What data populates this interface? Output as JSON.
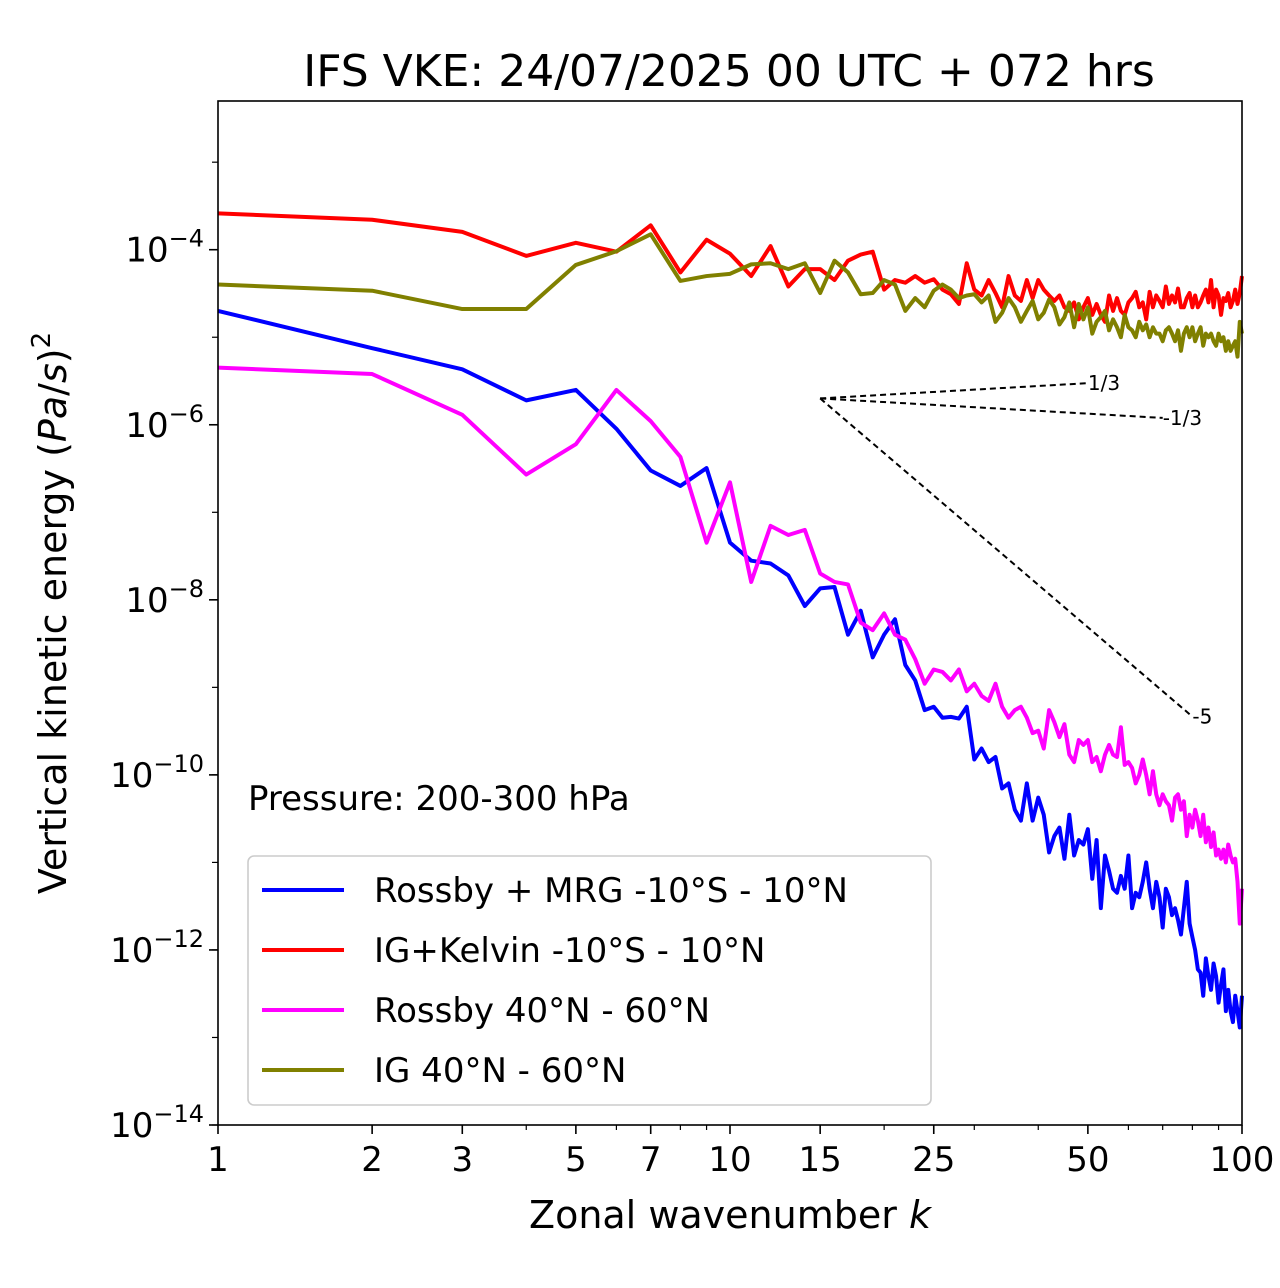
{
  "chart_data": {
    "type": "line",
    "title": "IFS VKE: 24/07/2025 00 UTC + 072 hrs",
    "xlabel": "Zonal wavenumber k",
    "ylabel": "Vertical kinetic energy (Pa/s)2",
    "xscale": "log",
    "yscale": "log",
    "xlim": [
      1,
      100
    ],
    "ylim": [
      1e-14,
      0.005
    ],
    "xticks": [
      1,
      2,
      3,
      5,
      7,
      10,
      15,
      25,
      50,
      100
    ],
    "xtick_labels": [
      "1",
      "2",
      "3",
      "5",
      "7",
      "10",
      "15",
      "25",
      "50",
      "100"
    ],
    "yticks": [
      1e-14,
      1e-12,
      1e-10,
      1e-08,
      1e-06,
      0.0001
    ],
    "ytick_labels": [
      "10−14",
      "10−12",
      "10−10",
      "10−8",
      "10−6",
      "10−4"
    ],
    "grid": false,
    "legend_position": "lower-left",
    "annotation": "Pressure: 200-300 hPa",
    "reference_slopes": [
      {
        "label": "1/3",
        "slope": 0.3333,
        "x_start": 15,
        "x_end": 50,
        "y_start": 2e-06
      },
      {
        "label": "-1/3",
        "slope": -0.3333,
        "x_start": 15,
        "x_end": 70,
        "y_start": 2e-06
      },
      {
        "label": "-5",
        "slope": -5,
        "x_start": 15,
        "x_end": 80,
        "y_start": 2e-06
      }
    ],
    "series": [
      {
        "name": "Rossby + MRG -10°S - 10°N",
        "color": "#0000ff",
        "x": [
          1,
          2,
          3,
          4,
          5,
          6,
          7,
          8,
          9,
          10,
          11,
          12,
          13,
          14,
          15,
          16,
          17,
          18,
          19,
          20,
          21,
          22,
          23,
          24,
          25,
          26,
          27,
          28,
          29,
          30,
          31,
          32,
          33,
          34,
          35,
          36,
          37,
          38,
          39,
          40,
          41,
          42,
          43,
          44,
          45,
          46,
          47,
          48,
          49,
          50,
          51,
          52,
          53,
          54,
          55,
          56,
          57,
          58,
          59,
          60,
          61,
          62,
          63,
          64,
          65,
          66,
          67,
          68,
          69,
          70,
          71,
          72,
          73,
          74,
          75,
          76,
          77,
          78,
          79,
          80,
          81,
          82,
          83,
          84,
          85,
          86,
          87,
          88,
          89,
          90,
          91,
          92,
          93,
          94,
          95,
          96,
          97,
          98,
          99,
          100
        ],
        "y": [
          2e-05,
          7.5e-06,
          4.3e-06,
          1.9e-06,
          2.5e-06,
          9e-07,
          3e-07,
          2e-07,
          3.2e-07,
          4.5e-08,
          2.8e-08,
          2.6e-08,
          1.9e-08,
          8.5e-09,
          1.35e-08,
          1.4e-08,
          4e-09,
          7.5e-09,
          2.2e-09,
          4e-09,
          6e-09,
          1.8e-09,
          1.2e-09,
          5.5e-10,
          6e-10,
          4.5e-10,
          4.6e-10,
          4.4e-10,
          6e-10,
          1.5e-10,
          2e-10,
          1.4e-10,
          1.6e-10,
          7e-11,
          8e-11,
          4e-11,
          3e-11,
          8e-11,
          3e-11,
          5.5e-11,
          3.5e-11,
          1.3e-11,
          2e-11,
          2.5e-11,
          1.1e-11,
          3.5e-11,
          1.2e-11,
          1.8e-11,
          1.6e-11,
          2.4e-11,
          6.5e-12,
          1.8e-11,
          3e-12,
          1.2e-11,
          8e-12,
          5e-12,
          4.5e-12,
          7e-12,
          5e-12,
          1.2e-11,
          3e-12,
          4.5e-12,
          4e-12,
          6e-12,
          1e-11,
          5e-12,
          3e-12,
          6e-12,
          4e-12,
          1.8e-12,
          5e-12,
          4e-12,
          2.5e-12,
          3e-12,
          2.2e-12,
          1.5e-12,
          3e-12,
          6e-12,
          2e-12,
          1.4e-12,
          1e-12,
          6e-13,
          5.5e-13,
          3e-13,
          8e-13,
          5e-13,
          3.5e-13,
          7e-13,
          5e-13,
          2.5e-13,
          4e-13,
          6e-13,
          2e-13,
          3.5e-13,
          2e-13,
          1.5e-13,
          3e-13,
          2e-13,
          1.3e-13,
          3e-13
        ]
      },
      {
        "name": "IG+Kelvin -10°S - 10°N",
        "color": "#ff0000",
        "x": [
          1,
          2,
          3,
          4,
          5,
          6,
          7,
          8,
          9,
          10,
          11,
          12,
          13,
          14,
          15,
          16,
          17,
          18,
          19,
          20,
          21,
          22,
          23,
          24,
          25,
          26,
          27,
          28,
          29,
          30,
          31,
          32,
          33,
          34,
          35,
          36,
          37,
          38,
          39,
          40,
          41,
          42,
          43,
          44,
          45,
          46,
          47,
          48,
          49,
          50,
          51,
          52,
          53,
          54,
          55,
          56,
          57,
          58,
          59,
          60,
          61,
          62,
          63,
          64,
          65,
          66,
          67,
          68,
          69,
          70,
          71,
          72,
          73,
          74,
          75,
          76,
          77,
          78,
          79,
          80,
          81,
          82,
          83,
          84,
          85,
          86,
          87,
          88,
          89,
          90,
          91,
          92,
          93,
          94,
          95,
          96,
          97,
          98,
          99,
          100
        ],
        "y": [
          0.00026,
          0.00022,
          0.00016,
          8.5e-05,
          0.00012,
          9.5e-05,
          0.00019,
          5.5e-05,
          0.00013,
          9e-05,
          5e-05,
          0.00011,
          3.8e-05,
          6e-05,
          6e-05,
          4.5e-05,
          7.5e-05,
          8.8e-05,
          9.5e-05,
          3.5e-05,
          4.5e-05,
          4.2e-05,
          5e-05,
          4.2e-05,
          4.6e-05,
          3.5e-05,
          3.1e-05,
          2.4e-05,
          7e-05,
          3.5e-05,
          3e-05,
          4.5e-05,
          3.2e-05,
          2.2e-05,
          5e-05,
          3e-05,
          2.6e-05,
          4.5e-05,
          2.8e-05,
          4.5e-05,
          3.5e-05,
          3e-05,
          2.6e-05,
          3e-05,
          2.2e-05,
          2e-05,
          2.5e-05,
          1.6e-05,
          2.2e-05,
          2.8e-05,
          1.8e-05,
          2.4e-05,
          1.8e-05,
          1.5e-05,
          3e-05,
          2e-05,
          2.8e-05,
          2e-05,
          1.8e-05,
          2.5e-05,
          2.8e-05,
          3.3e-05,
          2.2e-05,
          2.5e-05,
          1.6e-05,
          3.3e-05,
          2.2e-05,
          3e-05,
          2.6e-05,
          2.2e-05,
          3.8e-05,
          2.4e-05,
          3e-05,
          2.5e-05,
          3.6e-05,
          2.2e-05,
          2.2e-05,
          2.8e-05,
          3.2e-05,
          2.2e-05,
          3e-05,
          2.2e-05,
          2.5e-05,
          3e-05,
          3.5e-05,
          2.5e-05,
          4.5e-05,
          2.2e-05,
          3.5e-05,
          3e-05,
          1.8e-05,
          2.8e-05,
          2.6e-05,
          3.2e-05,
          2.2e-05,
          2.6e-05,
          3.5e-05,
          2.4e-05,
          3.2e-05,
          5e-05
        ]
      },
      {
        "name": "Rossby 40°N - 60°N",
        "color": "#ff00ff",
        "x": [
          1,
          2,
          3,
          4,
          5,
          6,
          7,
          8,
          9,
          10,
          11,
          12,
          13,
          14,
          15,
          16,
          17,
          18,
          19,
          20,
          21,
          22,
          23,
          24,
          25,
          26,
          27,
          28,
          29,
          30,
          31,
          32,
          33,
          34,
          35,
          36,
          37,
          38,
          39,
          40,
          41,
          42,
          43,
          44,
          45,
          46,
          47,
          48,
          49,
          50,
          51,
          52,
          53,
          54,
          55,
          56,
          57,
          58,
          59,
          60,
          61,
          62,
          63,
          64,
          65,
          66,
          67,
          68,
          69,
          70,
          71,
          72,
          73,
          74,
          75,
          76,
          77,
          78,
          79,
          80,
          81,
          82,
          83,
          84,
          85,
          86,
          87,
          88,
          89,
          90,
          91,
          92,
          93,
          94,
          95,
          96,
          97,
          98,
          99,
          100
        ],
        "y": [
          4.5e-06,
          3.8e-06,
          1.3e-06,
          2.7e-07,
          6e-07,
          2.5e-06,
          1.1e-06,
          4.3e-07,
          4.5e-08,
          2.2e-07,
          1.6e-08,
          7e-08,
          5.5e-08,
          6.3e-08,
          2e-08,
          1.6e-08,
          1.5e-08,
          5.5e-09,
          4.5e-09,
          7e-09,
          4e-09,
          3.5e-09,
          2.1e-09,
          1.1e-09,
          1.6e-09,
          1.5e-09,
          1.2e-09,
          1.6e-09,
          9e-10,
          1.1e-09,
          8e-10,
          7e-10,
          1.1e-09,
          6e-10,
          4.5e-10,
          5.5e-10,
          6e-10,
          4.5e-10,
          3e-10,
          3.2e-10,
          2e-10,
          5.5e-10,
          4e-10,
          2.7e-10,
          3.8e-10,
          1.7e-10,
          1.4e-10,
          2.5e-10,
          2.2e-10,
          2.5e-10,
          1.4e-10,
          1.6e-10,
          1.1e-10,
          1.7e-10,
          2.2e-10,
          1.7e-10,
          1.6e-10,
          3.5e-10,
          1.3e-10,
          1.4e-10,
          1.2e-10,
          8e-11,
          1e-10,
          1.5e-10,
          1e-10,
          6e-11,
          1.1e-10,
          6e-11,
          4.5e-11,
          6e-11,
          5e-11,
          4.5e-11,
          3e-11,
          5.5e-11,
          6e-11,
          4e-11,
          5e-11,
          2e-11,
          3.5e-11,
          2.5e-11,
          4e-11,
          3e-11,
          2e-11,
          3.5e-11,
          1.7e-11,
          2.5e-11,
          1.5e-11,
          2.2e-11,
          1.2e-11,
          1.4e-11,
          1.1e-11,
          1.4e-11,
          1e-11,
          1.6e-11,
          1.2e-11,
          1e-11,
          1.1e-11,
          6e-12,
          2e-12,
          5e-12
        ]
      },
      {
        "name": "IG 40°N - 60°N",
        "color": "#808000",
        "x": [
          1,
          2,
          3,
          4,
          5,
          6,
          7,
          8,
          9,
          10,
          11,
          12,
          13,
          14,
          15,
          16,
          17,
          18,
          19,
          20,
          21,
          22,
          23,
          24,
          25,
          26,
          27,
          28,
          29,
          30,
          31,
          32,
          33,
          34,
          35,
          36,
          37,
          38,
          39,
          40,
          41,
          42,
          43,
          44,
          45,
          46,
          47,
          48,
          49,
          50,
          51,
          52,
          53,
          54,
          55,
          56,
          57,
          58,
          59,
          60,
          61,
          62,
          63,
          64,
          65,
          66,
          67,
          68,
          69,
          70,
          71,
          72,
          73,
          74,
          75,
          76,
          77,
          78,
          79,
          80,
          81,
          82,
          83,
          84,
          85,
          86,
          87,
          88,
          89,
          90,
          91,
          92,
          93,
          94,
          95,
          96,
          97,
          98,
          99,
          100
        ],
        "y": [
          4e-05,
          3.4e-05,
          2.1e-05,
          2.1e-05,
          6.7e-05,
          9.6e-05,
          0.00015,
          4.4e-05,
          5e-05,
          5.3e-05,
          6.8e-05,
          7e-05,
          6e-05,
          7e-05,
          3.2e-05,
          7.5e-05,
          5.5e-05,
          3.1e-05,
          3.2e-05,
          4.5e-05,
          4e-05,
          2e-05,
          2.8e-05,
          2.2e-05,
          3.4e-05,
          4e-05,
          3.5e-05,
          2.8e-05,
          3e-05,
          3.1e-05,
          2.5e-05,
          3e-05,
          1.5e-05,
          1.9e-05,
          2.8e-05,
          2.2e-05,
          1.5e-05,
          2e-05,
          2.6e-05,
          1.6e-05,
          1.9e-05,
          2.7e-05,
          2.2e-05,
          1.4e-05,
          1.7e-05,
          2.5e-05,
          1.3e-05,
          2.4e-05,
          1.6e-05,
          2.2e-05,
          1.1e-05,
          1.5e-05,
          1.7e-05,
          2e-05,
          1.2e-05,
          1.6e-05,
          1.3e-05,
          1e-05,
          1.8e-05,
          1.3e-05,
          1.2e-05,
          1e-05,
          1.5e-05,
          1.2e-05,
          1.4e-05,
          1e-05,
          1.3e-05,
          1.1e-05,
          1.1e-05,
          9e-06,
          1.2e-05,
          1.3e-05,
          1.1e-05,
          9e-06,
          1.2e-05,
          7e-06,
          1.1e-05,
          1.3e-05,
          1e-05,
          1.3e-05,
          9e-06,
          1.1e-05,
          1.3e-05,
          8e-06,
          1.1e-05,
          1e-05,
          1.1e-05,
          9e-06,
          8e-06,
          1.1e-05,
          9e-06,
          1e-05,
          7e-06,
          9e-06,
          7e-06,
          8e-06,
          9e-06,
          6e-06,
          1.5e-05,
          1.1e-05
        ]
      }
    ]
  }
}
